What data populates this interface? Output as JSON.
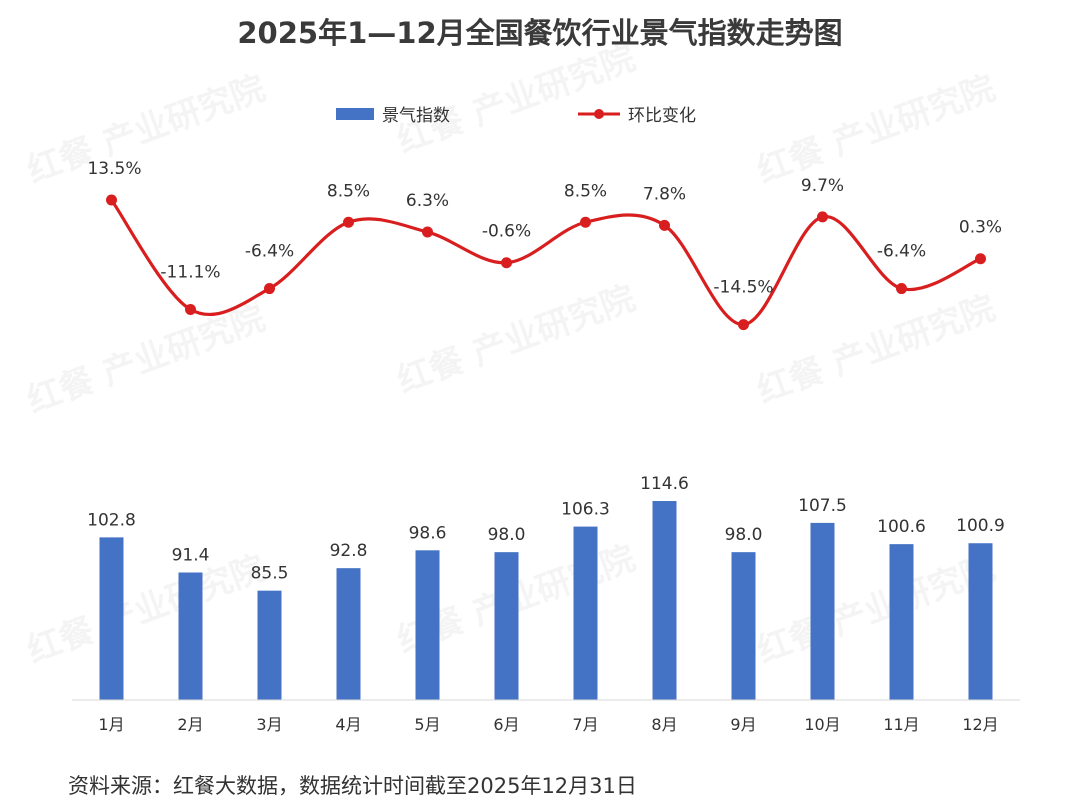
{
  "chart_data": {
    "type": "bar",
    "title": "2025年1—12月全国餐饮行业景气指数走势图",
    "categories": [
      "1月",
      "2月",
      "3月",
      "4月",
      "5月",
      "6月",
      "7月",
      "8月",
      "9月",
      "10月",
      "11月",
      "12月"
    ],
    "series": [
      {
        "name": "景气指数",
        "type": "bar",
        "values": [
          102.8,
          91.4,
          85.5,
          92.8,
          98.6,
          98.0,
          106.3,
          114.6,
          98.0,
          107.5,
          100.6,
          100.9
        ],
        "labels": [
          "102.8",
          "91.4",
          "85.5",
          "92.8",
          "98.6",
          "98.0",
          "106.3",
          "114.6",
          "98.0",
          "107.5",
          "100.6",
          "100.9"
        ],
        "color": "#4472c4"
      },
      {
        "name": "环比变化",
        "type": "line",
        "smooth": true,
        "values": [
          13.5,
          -11.1,
          -6.4,
          8.5,
          6.3,
          -0.6,
          8.5,
          7.8,
          -14.5,
          9.7,
          -6.4,
          0.3
        ],
        "labels": [
          "13.5%",
          "-11.1%",
          "-6.4%",
          "8.5%",
          "6.3%",
          "-0.6%",
          "8.5%",
          "7.8%",
          "-14.5%",
          "9.7%",
          "-6.4%",
          "0.3%"
        ],
        "color": "#d81e1e"
      }
    ],
    "legend": "top-center",
    "grid": false,
    "xlabel": "",
    "ylabel": ""
  },
  "watermark_text": "红餐 产业研究院",
  "source": "资料来源：红餐大数据，数据统计时间截至2025年12月31日"
}
